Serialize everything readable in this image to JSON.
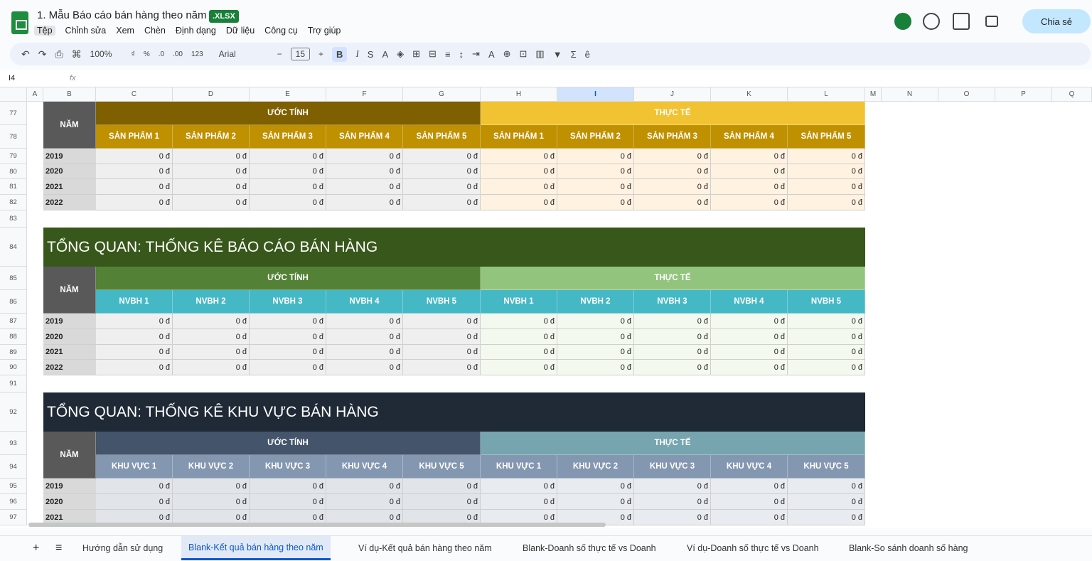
{
  "header": {
    "title": "1. Mẫu Báo cáo bán hàng theo năm",
    "badge": ".XLSX",
    "menu": [
      "Tệp",
      "Chỉnh sửa",
      "Xem",
      "Chèn",
      "Định dạng",
      "Dữ liệu",
      "Công cụ",
      "Trợ giúp"
    ],
    "share": "Chia sẻ"
  },
  "toolbar": {
    "left_icons": [
      "↶",
      "↷",
      "⎙",
      "⌘"
    ],
    "zoom": "100%",
    "format_items": [
      "₫",
      "%",
      ".0",
      ".00",
      "123"
    ],
    "font": "Arial",
    "minus": "−",
    "font_size": "15",
    "plus": "+",
    "style_icons": [
      "B",
      "I",
      "S",
      "A",
      "◈",
      "⊞",
      "⊟",
      "≡",
      "↕",
      "⇥",
      "A",
      "⊕",
      "⊡",
      "▥",
      "▼",
      "Σ",
      "ê"
    ]
  },
  "formula_bar": {
    "cell": "I4",
    "fx": "fx"
  },
  "columns": [
    "A",
    "B",
    "C",
    "D",
    "E",
    "F",
    "G",
    "H",
    "I",
    "J",
    "K",
    "L",
    "M",
    "N",
    "O",
    "P",
    "Q"
  ],
  "row_numbers": [
    77,
    78,
    79,
    80,
    81,
    82,
    83,
    84,
    85,
    86,
    87,
    88,
    89,
    90,
    91,
    92,
    93,
    94,
    95,
    96,
    97
  ],
  "tables": [
    {
      "year_label": "NĂM",
      "estimate": "ƯỚC TÍNH",
      "actual": "THỰC TẾ",
      "headers": [
        "SẢN PHẨM 1",
        "SẢN PHẨM 2",
        "SẢN PHẨM 3",
        "SẢN PHẨM 4",
        "SẢN PHẨM 5",
        "SẢN PHẨM 1",
        "SẢN PHẨM 2",
        "SẢN PHẨM 3",
        "SẢN PHẨM 4",
        "SẢN PHẨM 5"
      ],
      "rows": [
        [
          "2019",
          "0 đ",
          "0 đ",
          "0 đ",
          "0 đ",
          "0 đ",
          "0 đ",
          "0 đ",
          "0 đ",
          "0 đ",
          "0 đ"
        ],
        [
          "2020",
          "0 đ",
          "0 đ",
          "0 đ",
          "0 đ",
          "0 đ",
          "0 đ",
          "0 đ",
          "0 đ",
          "0 đ",
          "0 đ"
        ],
        [
          "2021",
          "0 đ",
          "0 đ",
          "0 đ",
          "0 đ",
          "0 đ",
          "0 đ",
          "0 đ",
          "0 đ",
          "0 đ",
          "0 đ"
        ],
        [
          "2022",
          "0 đ",
          "0 đ",
          "0 đ",
          "0 đ",
          "0 đ",
          "0 đ",
          "0 đ",
          "0 đ",
          "0 đ",
          "0 đ"
        ]
      ]
    },
    {
      "title": "TỔNG QUAN: THỐNG KÊ BÁO CÁO BÁN HÀNG",
      "year_label": "NĂM",
      "estimate": "ƯỚC TÍNH",
      "actual": "THỰC TẾ",
      "headers": [
        "NVBH 1",
        "NVBH 2",
        "NVBH 3",
        "NVBH 4",
        "NVBH 5",
        "NVBH 1",
        "NVBH 2",
        "NVBH 3",
        "NVBH 4",
        "NVBH 5"
      ],
      "rows": [
        [
          "2019",
          "0 đ",
          "0 đ",
          "0 đ",
          "0 đ",
          "0 đ",
          "0 đ",
          "0 đ",
          "0 đ",
          "0 đ",
          "0 đ"
        ],
        [
          "2020",
          "0 đ",
          "0 đ",
          "0 đ",
          "0 đ",
          "0 đ",
          "0 đ",
          "0 đ",
          "0 đ",
          "0 đ",
          "0 đ"
        ],
        [
          "2021",
          "0 đ",
          "0 đ",
          "0 đ",
          "0 đ",
          "0 đ",
          "0 đ",
          "0 đ",
          "0 đ",
          "0 đ",
          "0 đ"
        ],
        [
          "2022",
          "0 đ",
          "0 đ",
          "0 đ",
          "0 đ",
          "0 đ",
          "0 đ",
          "0 đ",
          "0 đ",
          "0 đ",
          "0 đ"
        ]
      ]
    },
    {
      "title": "TỔNG QUAN: THỐNG KÊ KHU VỰC BÁN HÀNG",
      "year_label": "NĂM",
      "estimate": "ƯỚC TÍNH",
      "actual": "THỰC TẾ",
      "headers": [
        "KHU VỰC 1",
        "KHU VỰC 2",
        "KHU VỰC 3",
        "KHU VỰC 4",
        "KHU VỰC 5",
        "KHU VỰC 1",
        "KHU VỰC 2",
        "KHU VỰC 3",
        "KHU VỰC 4",
        "KHU VỰC 5"
      ],
      "rows": [
        [
          "2019",
          "0 đ",
          "0 đ",
          "0 đ",
          "0 đ",
          "0 đ",
          "0 đ",
          "0 đ",
          "0 đ",
          "0 đ",
          "0 đ"
        ],
        [
          "2020",
          "0 đ",
          "0 đ",
          "0 đ",
          "0 đ",
          "0 đ",
          "0 đ",
          "0 đ",
          "0 đ",
          "0 đ",
          "0 đ"
        ],
        [
          "2021",
          "0 đ",
          "0 đ",
          "0 đ",
          "0 đ",
          "0 đ",
          "0 đ",
          "0 đ",
          "0 đ",
          "0 đ",
          "0 đ"
        ]
      ]
    }
  ],
  "sheet_tabs": {
    "add": "+",
    "list": "≡",
    "tabs": [
      "Hướng dẫn sử dụng",
      "Blank-Kết quả bán hàng theo năm",
      "Ví dụ-Kết quả bán hàng theo năm",
      "Blank-Doanh số thực tế vs Doanh",
      "Ví dụ-Doanh số thực tế vs Doanh",
      "Blank-So sánh doanh số hàng"
    ],
    "active": 1
  }
}
